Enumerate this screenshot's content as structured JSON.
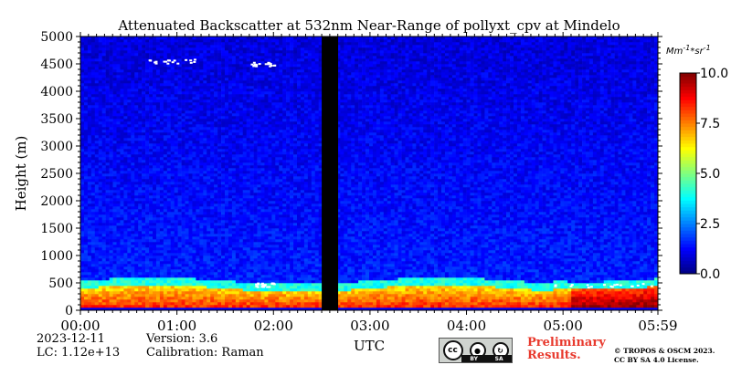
{
  "chart_data": {
    "type": "heatmap",
    "title": "Attenuated Backscatter at 532nm Near-Range of pollyxt_cpv at Mindelo",
    "xlabel": "UTC",
    "ylabel": "Height (m)",
    "x_ticks": [
      "00:00",
      "01:00",
      "02:00",
      "03:00",
      "04:00",
      "05:00",
      "05:59"
    ],
    "x_range_hours": [
      0,
      5.983
    ],
    "y_ticks": [
      0,
      500,
      1000,
      1500,
      2000,
      2500,
      3000,
      3500,
      4000,
      4500,
      5000
    ],
    "ylim": [
      0,
      5000
    ],
    "colorbar": {
      "label": "Mm^{-1}*sr^{-1}",
      "ticks": [
        "0.0",
        "2.5",
        "5.0",
        "7.5",
        "10.0"
      ],
      "range": [
        0,
        10
      ],
      "colormap": "jet"
    },
    "no_data_interval_hours": [
      2.5,
      2.67
    ],
    "layers": [
      {
        "name_hint": "strong surface layer",
        "height_m": [
          50,
          420
        ],
        "value_approx": 8.0
      },
      {
        "name_hint": "boundary layer",
        "height_m": [
          420,
          550
        ],
        "value_approx": 4.5
      },
      {
        "name_hint": "background free troposphere",
        "height_m": [
          550,
          5000
        ],
        "value_approx": 1.0
      }
    ]
  },
  "info": {
    "date": "2023-12-11",
    "lc": "LC: 1.12e+13",
    "version": "Version: 3.6",
    "calibration": "Calibration: Raman"
  },
  "license": {
    "badge_cc": "cc",
    "badge_by": "BY",
    "badge_sa": "SA",
    "preliminary_line1": "Preliminary",
    "preliminary_line2": "Results.",
    "copyright_line1": "© TROPOS & OSCM 2023.",
    "copyright_line2": "CC BY SA 4.0 License."
  }
}
